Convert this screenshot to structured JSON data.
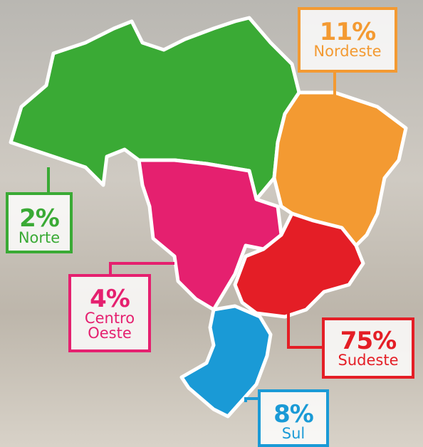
{
  "regions": [
    {
      "percent": "11%",
      "name": "Nordeste"
    },
    {
      "percent": "2%",
      "name": "Norte"
    },
    {
      "percent": "4%",
      "name": "Centro Oeste"
    },
    {
      "percent": "75%",
      "name": "Sudeste"
    },
    {
      "percent": "8%",
      "name": "Sul"
    }
  ]
}
